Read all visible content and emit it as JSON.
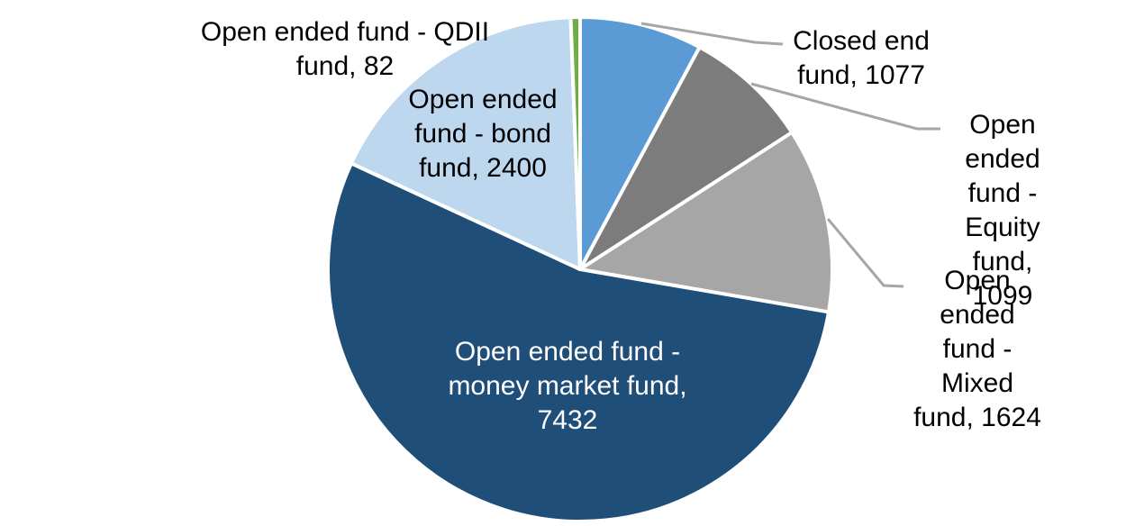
{
  "chart_data": {
    "type": "pie",
    "title": "",
    "legend": "none",
    "background_color": "#FFFFFF",
    "slice_border_color": "#FFFFFF",
    "leader_line_color": "#A6A6A6",
    "label_text_color": "#000000",
    "inside_label_text_color": "#FFFFFF",
    "start_angle_deg": 0,
    "direction": "clockwise",
    "total": 13714,
    "slices": [
      {
        "label": "Closed end fund",
        "value": 1077,
        "color": "#5B9BD5"
      },
      {
        "label": "Open ended fund - Equity fund",
        "value": 1099,
        "color": "#7C7C7C"
      },
      {
        "label": "Open ended fund - Mixed fund",
        "value": 1624,
        "color": "#A6A6A6"
      },
      {
        "label": "Open ended fund - money market fund",
        "value": 7432,
        "color": "#1F4E79"
      },
      {
        "label": "Open ended fund - bond fund",
        "value": 2400,
        "color": "#BDD7EE"
      },
      {
        "label": "Open ended fund - QDII fund",
        "value": 82,
        "color": "#70AD47"
      }
    ],
    "data_labels": {
      "qdii": "Open ended fund - QDII\nfund, 82",
      "bond": "Open ended\nfund - bond\nfund, 2400",
      "closed": "Closed end\nfund, 1077",
      "equity": "Open ended\nfund - Equity\nfund, 1099",
      "mixed": "Open ended\nfund - Mixed\nfund, 1624",
      "money": "Open ended fund -\nmoney market fund,\n7432"
    }
  }
}
